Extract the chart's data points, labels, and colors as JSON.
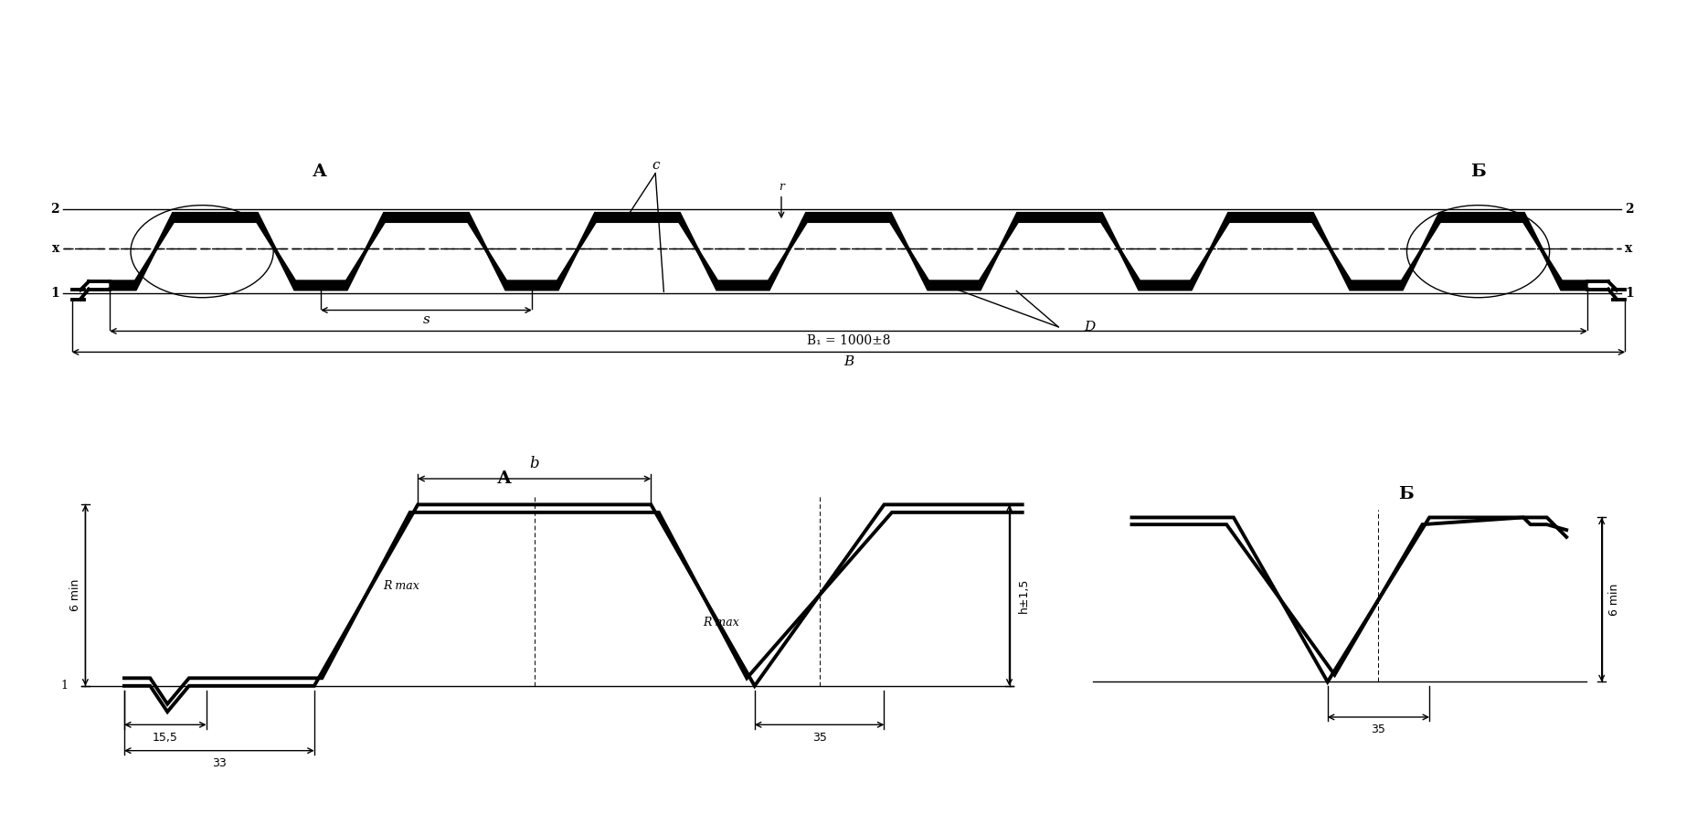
{
  "bg_color": "#ffffff",
  "line_color": "#000000",
  "thick_lw": 2.8,
  "thin_lw": 1.0,
  "fill_color": "#000000",
  "labels": {
    "A_top": "А",
    "B_top": "Б",
    "c_label": "c",
    "s_label": "s",
    "D_label": "D",
    "r_label": "r",
    "B1_label": "B₁ = 1000±8",
    "B_label": "B",
    "line2": "2",
    "linex": "x",
    "line1": "1",
    "A_bot": "А",
    "B_bot": "Б",
    "b_label": "b",
    "Rmax1": "R max",
    "Rmax2": "R max",
    "h_label": "h±1,5",
    "dim_155": "15,5",
    "dim_33": "33",
    "dim_35a": "35",
    "dim_35b": "35",
    "dim_6mina": "6 min",
    "dim_6minb": "6 min",
    "dim_1": "1"
  }
}
